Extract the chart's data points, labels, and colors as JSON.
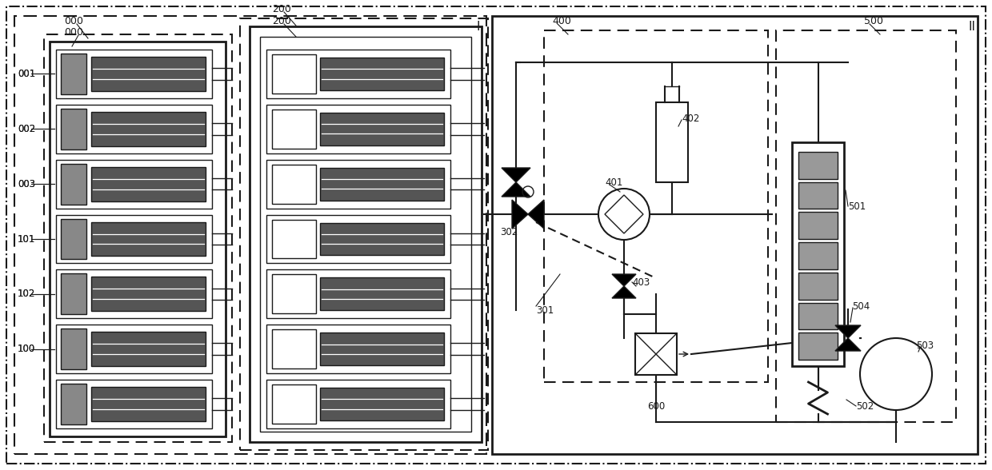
{
  "bg_color": "#ffffff",
  "line_color": "#1a1a1a",
  "fig_width": 12.4,
  "fig_height": 5.88,
  "dpi": 100
}
